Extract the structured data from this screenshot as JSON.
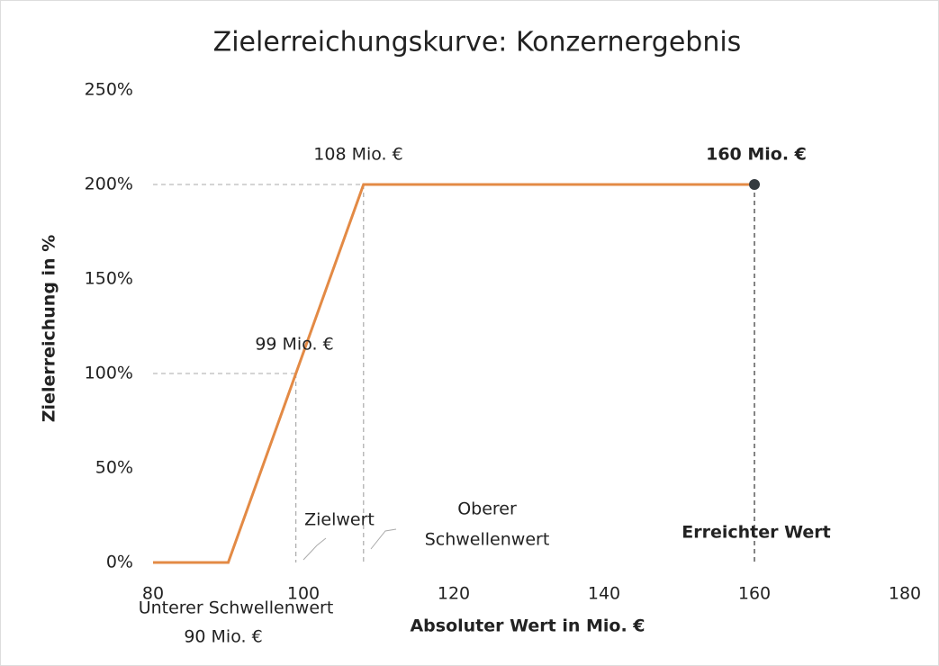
{
  "chart_data": {
    "type": "line",
    "title": "Zielerreichungskurve: Konzernergebnis",
    "x_label": "Absoluter Wert in Mio. €",
    "y_label": "Zielerreichung in %",
    "x": [
      80,
      90,
      108,
      160
    ],
    "series": [
      {
        "color": "#e38a45",
        "values": [
          0,
          0,
          200,
          200
        ]
      }
    ],
    "highlight": {
      "x": 160,
      "y": 200,
      "color": "#333a3f"
    },
    "reference_lines": [
      {
        "x": 99,
        "y": 100
      },
      {
        "x": 108,
        "y": 200
      },
      {
        "x": 160,
        "y": 200
      }
    ],
    "xlim": [
      80,
      180
    ],
    "xticks": [
      80,
      100,
      120,
      140,
      160,
      180
    ],
    "ylim": [
      0,
      250
    ],
    "yticks": [
      {
        "value": 0,
        "label": "0%"
      },
      {
        "value": 50,
        "label": "50%"
      },
      {
        "value": 100,
        "label": "100%"
      },
      {
        "value": 150,
        "label": "150%"
      },
      {
        "value": 200,
        "label": "200%"
      },
      {
        "value": 250,
        "label": "250%"
      }
    ],
    "annotations": [
      {
        "text": "108 Mio. €"
      },
      {
        "text": "160 Mio. €",
        "bold": true
      },
      {
        "text": "99 Mio. €"
      },
      {
        "text": "Zielwert"
      },
      {
        "text": "Oberer"
      },
      {
        "text": "Schwellenwert"
      },
      {
        "text": "Erreichter Wert",
        "bold": true
      },
      {
        "text": "Unterer Schwellenwert"
      },
      {
        "text": "90 Mio. €"
      }
    ]
  }
}
